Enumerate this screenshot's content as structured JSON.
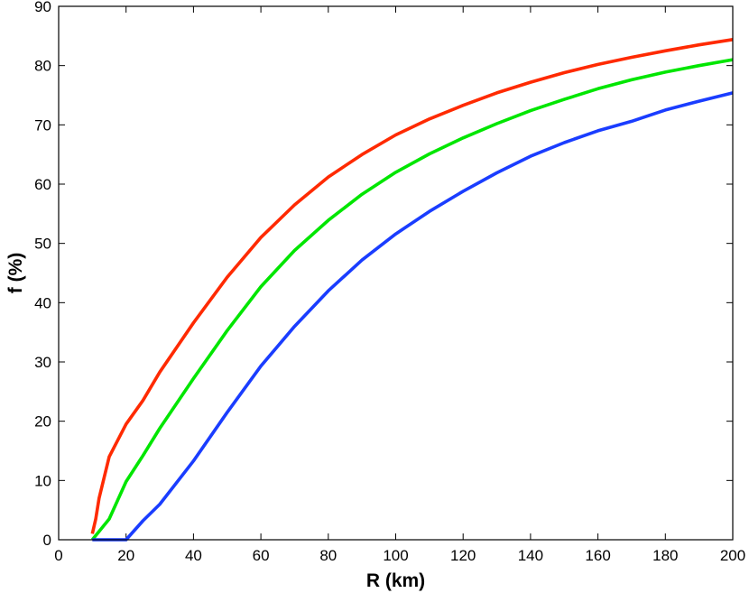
{
  "chart_data": {
    "type": "line",
    "title": "",
    "xlabel": "R (km)",
    "ylabel": "f (%)",
    "xlim": [
      0,
      200
    ],
    "ylim": [
      0,
      90
    ],
    "x_ticks": [
      0,
      20,
      40,
      60,
      80,
      100,
      120,
      140,
      160,
      180,
      200
    ],
    "y_ticks": [
      0,
      10,
      20,
      30,
      40,
      50,
      60,
      70,
      80,
      90
    ],
    "grid": false,
    "legend": "none",
    "series": [
      {
        "color": "#ff2a00",
        "x": [
          10,
          11,
          12,
          15,
          20,
          25,
          30,
          40,
          50,
          60,
          70,
          80,
          90,
          100,
          110,
          120,
          130,
          140,
          150,
          160,
          170,
          180,
          190,
          200
        ],
        "y": [
          1,
          3.5,
          7,
          14,
          19.5,
          23.5,
          28.3,
          36.6,
          44.3,
          51,
          56.5,
          61.2,
          65,
          68.3,
          71,
          73.3,
          75.4,
          77.2,
          78.8,
          80.2,
          81.4,
          82.5,
          83.5,
          84.4
        ]
      },
      {
        "color": "#00e600",
        "x": [
          10,
          15,
          20,
          25,
          30,
          40,
          50,
          60,
          70,
          80,
          90,
          100,
          110,
          120,
          130,
          140,
          150,
          160,
          170,
          180,
          190,
          200
        ],
        "y": [
          0,
          3.5,
          9.8,
          14.2,
          18.8,
          27.2,
          35.3,
          42.7,
          48.8,
          53.9,
          58.3,
          62,
          65.1,
          67.8,
          70.2,
          72.4,
          74.3,
          76.1,
          77.6,
          78.9,
          80,
          81
        ]
      },
      {
        "color": "#1a3dff",
        "x": [
          10,
          20,
          25,
          30,
          40,
          50,
          60,
          70,
          80,
          90,
          100,
          110,
          120,
          130,
          140,
          150,
          160,
          170,
          180,
          190,
          200
        ],
        "y": [
          0,
          0,
          3.2,
          6,
          13.3,
          21.5,
          29.3,
          36,
          42,
          47.2,
          51.6,
          55.4,
          58.8,
          61.9,
          64.7,
          67,
          69,
          70.6,
          72.5,
          74,
          75.4
        ]
      }
    ]
  }
}
